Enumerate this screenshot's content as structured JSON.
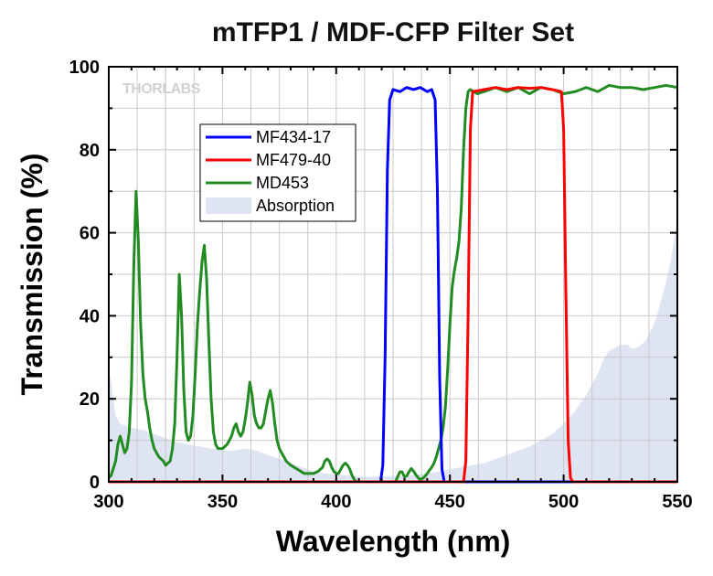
{
  "chart_data": {
    "type": "line",
    "title": "mTFP1 / MDF-CFP Filter Set",
    "xlabel": "Wavelength (nm)",
    "ylabel": "Transmission (%)",
    "xlim": [
      300,
      550
    ],
    "ylim": [
      0,
      100
    ],
    "xticks": [
      300,
      350,
      400,
      450,
      500,
      550
    ],
    "yticks": [
      0,
      20,
      40,
      60,
      80,
      100
    ],
    "grid": true,
    "legend_position": "upper-left",
    "watermark": "THORLABS",
    "series": [
      {
        "name": "MF434-17",
        "kind": "line",
        "color": "#0000ff",
        "points": [
          [
            300,
            0
          ],
          [
            419.5,
            0
          ],
          [
            420.5,
            4
          ],
          [
            421.5,
            30
          ],
          [
            422.5,
            75
          ],
          [
            423.5,
            92
          ],
          [
            425,
            94.5
          ],
          [
            428,
            94
          ],
          [
            431,
            95
          ],
          [
            434,
            94.5
          ],
          [
            437,
            95
          ],
          [
            440,
            94
          ],
          [
            442,
            94.5
          ],
          [
            443.5,
            92
          ],
          [
            444.5,
            70
          ],
          [
            445.5,
            25
          ],
          [
            446.5,
            3
          ],
          [
            447.5,
            0
          ],
          [
            550,
            0
          ]
        ]
      },
      {
        "name": "MF479-40",
        "kind": "line",
        "color": "#ff0000",
        "points": [
          [
            300,
            0
          ],
          [
            456,
            0
          ],
          [
            457,
            5
          ],
          [
            458,
            40
          ],
          [
            459,
            85
          ],
          [
            460,
            94
          ],
          [
            465,
            94.5
          ],
          [
            470,
            95
          ],
          [
            475,
            94.5
          ],
          [
            480,
            95
          ],
          [
            485,
            94.8
          ],
          [
            490,
            95
          ],
          [
            495,
            94.5
          ],
          [
            499,
            94
          ],
          [
            500,
            85
          ],
          [
            501,
            45
          ],
          [
            502,
            10
          ],
          [
            503,
            1
          ],
          [
            504,
            0
          ],
          [
            550,
            0
          ]
        ]
      },
      {
        "name": "MD453",
        "kind": "line",
        "color": "#228b22",
        "points": [
          [
            300,
            1
          ],
          [
            301,
            1.5
          ],
          [
            303,
            5
          ],
          [
            304,
            9
          ],
          [
            305,
            11
          ],
          [
            306,
            9
          ],
          [
            307,
            7
          ],
          [
            308,
            8
          ],
          [
            309,
            12
          ],
          [
            310,
            24
          ],
          [
            311,
            52
          ],
          [
            312,
            70
          ],
          [
            313,
            58
          ],
          [
            314,
            38
          ],
          [
            315,
            26
          ],
          [
            316,
            20
          ],
          [
            317,
            17
          ],
          [
            318,
            13
          ],
          [
            319,
            10
          ],
          [
            320,
            8
          ],
          [
            322,
            6
          ],
          [
            324,
            5
          ],
          [
            325,
            4
          ],
          [
            327,
            5
          ],
          [
            328,
            8
          ],
          [
            329,
            14
          ],
          [
            330,
            30
          ],
          [
            331,
            50
          ],
          [
            332,
            40
          ],
          [
            333,
            22
          ],
          [
            334,
            12
          ],
          [
            335,
            10
          ],
          [
            336,
            11
          ],
          [
            337,
            16
          ],
          [
            338,
            26
          ],
          [
            339,
            38
          ],
          [
            340,
            46
          ],
          [
            341,
            53
          ],
          [
            342,
            57
          ],
          [
            343,
            49
          ],
          [
            344,
            34
          ],
          [
            345,
            20
          ],
          [
            346,
            12
          ],
          [
            347,
            9
          ],
          [
            348,
            8
          ],
          [
            349,
            8
          ],
          [
            350,
            8
          ],
          [
            351,
            8.5
          ],
          [
            352,
            9
          ],
          [
            353,
            10
          ],
          [
            354,
            11
          ],
          [
            355,
            13
          ],
          [
            356,
            14
          ],
          [
            357,
            12
          ],
          [
            358,
            11
          ],
          [
            359,
            12
          ],
          [
            360,
            15
          ],
          [
            361,
            19
          ],
          [
            362,
            24
          ],
          [
            363,
            21
          ],
          [
            364,
            16
          ],
          [
            365,
            14
          ],
          [
            366,
            13
          ],
          [
            367,
            13
          ],
          [
            368,
            14
          ],
          [
            369,
            17
          ],
          [
            370,
            20
          ],
          [
            371,
            22
          ],
          [
            372,
            19
          ],
          [
            373,
            14
          ],
          [
            374,
            10
          ],
          [
            375,
            8
          ],
          [
            376,
            7
          ],
          [
            377,
            6
          ],
          [
            378,
            5
          ],
          [
            380,
            4
          ],
          [
            383,
            3
          ],
          [
            386,
            2
          ],
          [
            388,
            2
          ],
          [
            390,
            2
          ],
          [
            392,
            2.5
          ],
          [
            394,
            3.5
          ],
          [
            395,
            5
          ],
          [
            396,
            5.5
          ],
          [
            397,
            5
          ],
          [
            398,
            3.5
          ],
          [
            399,
            2.5
          ],
          [
            400,
            2
          ],
          [
            401,
            2
          ],
          [
            402,
            3
          ],
          [
            403,
            4
          ],
          [
            404,
            4.5
          ],
          [
            405,
            4
          ],
          [
            406,
            3
          ],
          [
            407,
            1.5
          ],
          [
            408,
            0.5
          ],
          [
            409,
            0
          ],
          [
            426,
            0
          ],
          [
            427,
            1.2
          ],
          [
            428,
            2.4
          ],
          [
            429,
            2.4
          ],
          [
            430,
            1.2
          ],
          [
            431,
            1.4
          ],
          [
            432,
            2.4
          ],
          [
            433,
            3.2
          ],
          [
            434,
            2.6
          ],
          [
            435,
            1.7
          ],
          [
            436,
            1.0
          ],
          [
            437,
            0.5
          ],
          [
            438,
            0.8
          ],
          [
            439,
            1.3
          ],
          [
            440,
            2
          ],
          [
            441,
            2.8
          ],
          [
            442,
            3.5
          ],
          [
            443,
            4.5
          ],
          [
            444,
            6
          ],
          [
            445,
            8
          ],
          [
            446,
            10
          ],
          [
            447,
            13
          ],
          [
            448,
            18
          ],
          [
            449,
            27
          ],
          [
            450,
            38
          ],
          [
            451,
            47
          ],
          [
            452,
            51
          ],
          [
            453,
            54
          ],
          [
            454,
            58
          ],
          [
            455,
            66
          ],
          [
            456,
            80
          ],
          [
            457,
            90
          ],
          [
            458,
            94
          ],
          [
            459,
            94.5
          ],
          [
            462,
            93.5
          ],
          [
            465,
            94
          ],
          [
            470,
            95
          ],
          [
            475,
            94
          ],
          [
            480,
            95
          ],
          [
            485,
            93.5
          ],
          [
            490,
            95
          ],
          [
            495,
            94.5
          ],
          [
            500,
            93.5
          ],
          [
            505,
            94
          ],
          [
            510,
            95
          ],
          [
            515,
            94
          ],
          [
            520,
            95.5
          ],
          [
            525,
            95
          ],
          [
            530,
            95
          ],
          [
            535,
            94.5
          ],
          [
            540,
            95
          ],
          [
            545,
            95.5
          ],
          [
            550,
            95
          ]
        ]
      },
      {
        "name": "Absorption",
        "kind": "area",
        "color": "#dfe4f2",
        "points": [
          [
            300,
            27
          ],
          [
            301,
            24
          ],
          [
            302,
            20
          ],
          [
            303,
            16
          ],
          [
            305,
            14
          ],
          [
            310,
            13
          ],
          [
            315,
            12.5
          ],
          [
            320,
            11.5
          ],
          [
            325,
            10.5
          ],
          [
            330,
            9.5
          ],
          [
            335,
            9
          ],
          [
            340,
            8.5
          ],
          [
            345,
            8
          ],
          [
            350,
            7.5
          ],
          [
            355,
            7.5
          ],
          [
            360,
            8
          ],
          [
            365,
            7.5
          ],
          [
            370,
            6.5
          ],
          [
            375,
            5.5
          ],
          [
            380,
            4.5
          ],
          [
            385,
            3.5
          ],
          [
            390,
            2.5
          ],
          [
            395,
            2
          ],
          [
            400,
            1.8
          ],
          [
            405,
            1.5
          ],
          [
            410,
            1.2
          ],
          [
            415,
            1.2
          ],
          [
            420,
            1.3
          ],
          [
            425,
            1.4
          ],
          [
            430,
            1.5
          ],
          [
            435,
            1.7
          ],
          [
            440,
            2
          ],
          [
            445,
            2.5
          ],
          [
            450,
            3
          ],
          [
            455,
            3.5
          ],
          [
            460,
            4
          ],
          [
            465,
            4.5
          ],
          [
            470,
            5.5
          ],
          [
            475,
            6.5
          ],
          [
            480,
            7.5
          ],
          [
            485,
            8.5
          ],
          [
            490,
            10
          ],
          [
            495,
            11.5
          ],
          [
            500,
            14
          ],
          [
            505,
            17
          ],
          [
            510,
            21
          ],
          [
            515,
            26
          ],
          [
            518,
            30
          ],
          [
            520,
            31.5
          ],
          [
            523,
            32.5
          ],
          [
            526,
            33
          ],
          [
            528,
            33
          ],
          [
            530,
            32
          ],
          [
            533,
            32.5
          ],
          [
            536,
            34
          ],
          [
            539,
            37
          ],
          [
            541,
            40
          ],
          [
            543,
            44
          ],
          [
            545,
            48
          ],
          [
            547,
            53
          ],
          [
            549,
            60
          ],
          [
            550,
            64
          ]
        ]
      }
    ]
  }
}
